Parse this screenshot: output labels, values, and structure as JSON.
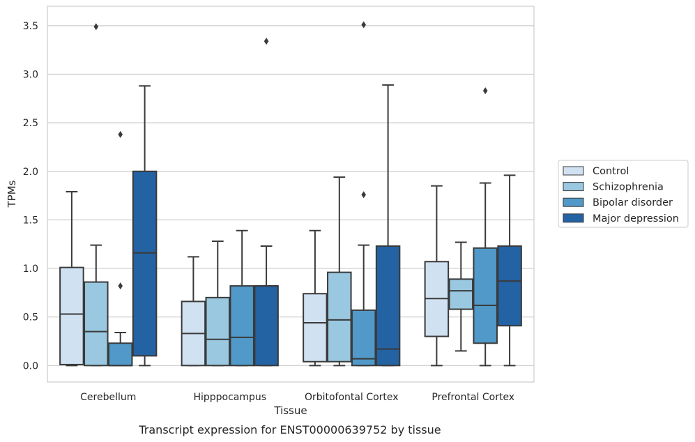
{
  "chart_data": {
    "type": "boxplot",
    "xlabel": "Tissue",
    "ylabel": "TPMs",
    "caption": "Transcript expression for ENST00000639752 by tissue",
    "ylim": [
      -0.17,
      3.7
    ],
    "yticks": [
      "0.0",
      "0.5",
      "1.0",
      "1.5",
      "2.0",
      "2.5",
      "3.0",
      "3.5"
    ],
    "grid": "horizontal",
    "legend_position": "right",
    "categories": [
      "Cerebellum",
      "Hipppocampus",
      "Orbitofontal Cortex",
      "Prefrontal Cortex"
    ],
    "series": [
      {
        "name": "Control",
        "color": "#d0e1f2",
        "boxes": [
          {
            "whislo": 0.0,
            "q1": 0.01,
            "med": 0.53,
            "q3": 1.01,
            "whishi": 1.79,
            "fliers": []
          },
          {
            "whislo": 0.0,
            "q1": 0.0,
            "med": 0.33,
            "q3": 0.66,
            "whishi": 1.12,
            "fliers": []
          },
          {
            "whislo": 0.0,
            "q1": 0.04,
            "med": 0.44,
            "q3": 0.74,
            "whishi": 1.39,
            "fliers": []
          },
          {
            "whislo": 0.0,
            "q1": 0.3,
            "med": 0.69,
            "q3": 1.07,
            "whishi": 1.85,
            "fliers": []
          }
        ]
      },
      {
        "name": "Schizophrenia",
        "color": "#9ac8e0",
        "boxes": [
          {
            "whislo": 0.0,
            "q1": 0.0,
            "med": 0.35,
            "q3": 0.86,
            "whishi": 1.24,
            "fliers": [
              3.49
            ]
          },
          {
            "whislo": 0.0,
            "q1": 0.0,
            "med": 0.27,
            "q3": 0.7,
            "whishi": 1.28,
            "fliers": []
          },
          {
            "whislo": 0.0,
            "q1": 0.04,
            "med": 0.47,
            "q3": 0.96,
            "whishi": 1.94,
            "fliers": []
          },
          {
            "whislo": 0.15,
            "q1": 0.58,
            "med": 0.77,
            "q3": 0.89,
            "whishi": 1.27,
            "fliers": []
          }
        ]
      },
      {
        "name": "Bipolar disorder",
        "color": "#5199c8",
        "boxes": [
          {
            "whislo": 0.0,
            "q1": 0.0,
            "med": 0.0,
            "q3": 0.23,
            "whishi": 0.34,
            "fliers": [
              0.82,
              2.38
            ]
          },
          {
            "whislo": 0.0,
            "q1": 0.0,
            "med": 0.29,
            "q3": 0.82,
            "whishi": 1.39,
            "fliers": []
          },
          {
            "whislo": 0.0,
            "q1": 0.0,
            "med": 0.07,
            "q3": 0.57,
            "whishi": 1.24,
            "fliers": [
              1.76,
              3.51
            ]
          },
          {
            "whislo": 0.0,
            "q1": 0.23,
            "med": 0.62,
            "q3": 1.21,
            "whishi": 1.88,
            "fliers": [
              2.83
            ]
          }
        ]
      },
      {
        "name": "Major depression",
        "color": "#2362a3",
        "boxes": [
          {
            "whislo": 0.0,
            "q1": 0.1,
            "med": 1.16,
            "q3": 2.0,
            "whishi": 2.88,
            "fliers": []
          },
          {
            "whislo": 0.0,
            "q1": 0.0,
            "med": 0.82,
            "q3": 0.82,
            "whishi": 1.23,
            "fliers": [
              3.34
            ]
          },
          {
            "whislo": 0.0,
            "q1": 0.0,
            "med": 0.17,
            "q3": 1.23,
            "whishi": 2.89,
            "fliers": []
          },
          {
            "whislo": 0.0,
            "q1": 0.41,
            "med": 0.87,
            "q3": 1.23,
            "whishi": 1.96,
            "fliers": []
          }
        ]
      }
    ]
  }
}
